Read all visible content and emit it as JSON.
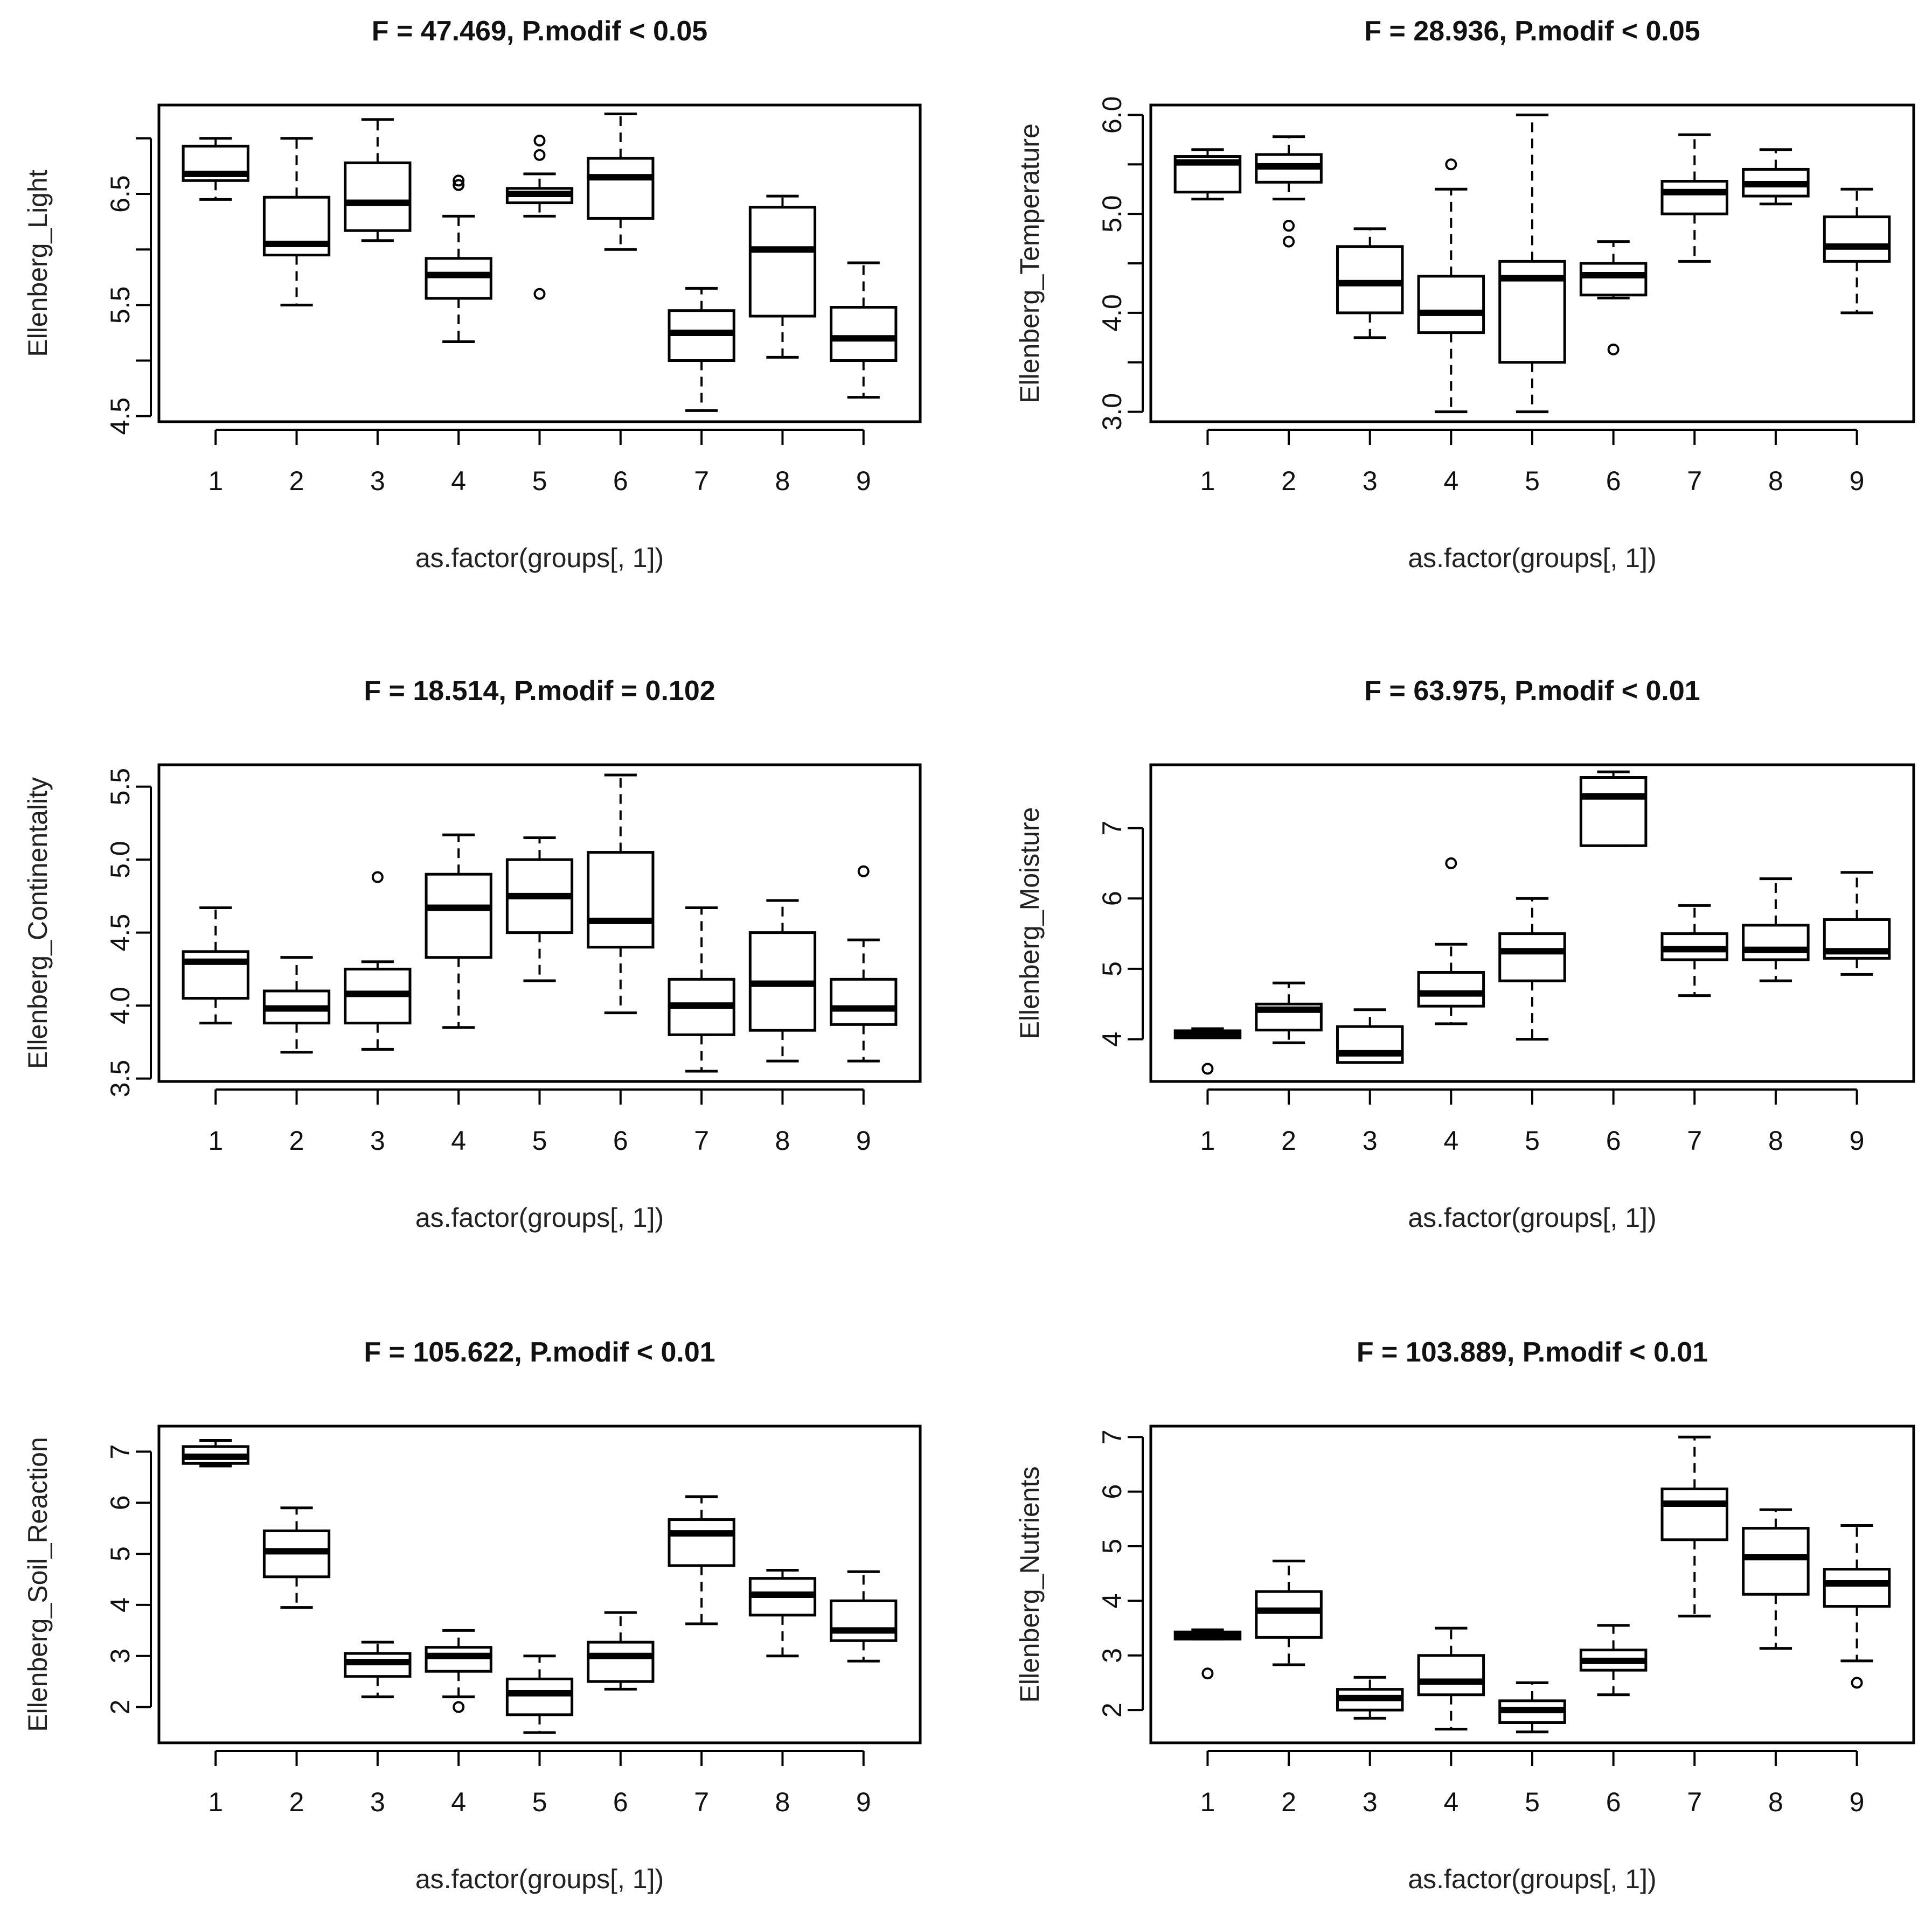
{
  "chart_data": [
    {
      "type": "boxplot",
      "title": "F = 47.469, P.modif < 0.05",
      "xlabel": "as.factor(groups[, 1])",
      "ylabel": "Ellenberg_Light",
      "categories": [
        "1",
        "2",
        "3",
        "4",
        "5",
        "6",
        "7",
        "8",
        "9"
      ],
      "ylim": [
        4.45,
        7.3
      ],
      "yticks": [
        4.5,
        5.0,
        5.5,
        6.0,
        6.5,
        7.0
      ],
      "ytick_labels": [
        "4.5",
        "",
        "5.5",
        "",
        "6.5",
        ""
      ],
      "boxes": [
        {
          "min": 6.45,
          "q1": 6.62,
          "median": 6.68,
          "q3": 6.93,
          "max": 7.0,
          "outliers": []
        },
        {
          "min": 5.5,
          "q1": 5.95,
          "median": 6.05,
          "q3": 6.47,
          "max": 7.0,
          "outliers": []
        },
        {
          "min": 6.08,
          "q1": 6.17,
          "median": 6.42,
          "q3": 6.78,
          "max": 7.17,
          "outliers": []
        },
        {
          "min": 5.17,
          "q1": 5.56,
          "median": 5.77,
          "q3": 5.92,
          "max": 6.3,
          "outliers": [
            6.58,
            6.62
          ]
        },
        {
          "min": 6.3,
          "q1": 6.42,
          "median": 6.5,
          "q3": 6.55,
          "max": 6.68,
          "outliers": [
            5.6,
            6.85,
            6.98
          ]
        },
        {
          "min": 6.0,
          "q1": 6.28,
          "median": 6.65,
          "q3": 6.82,
          "max": 7.22,
          "outliers": []
        },
        {
          "min": 4.55,
          "q1": 5.0,
          "median": 5.25,
          "q3": 5.45,
          "max": 5.65,
          "outliers": []
        },
        {
          "min": 5.03,
          "q1": 5.4,
          "median": 6.0,
          "q3": 6.38,
          "max": 6.48,
          "outliers": []
        },
        {
          "min": 4.67,
          "q1": 5.0,
          "median": 5.2,
          "q3": 5.48,
          "max": 5.88,
          "outliers": []
        }
      ]
    },
    {
      "type": "boxplot",
      "title": "F = 28.936, P.modif < 0.05",
      "xlabel": "as.factor(groups[, 1])",
      "ylabel": "Ellenberg_Temperature",
      "categories": [
        "1",
        "2",
        "3",
        "4",
        "5",
        "6",
        "7",
        "8",
        "9"
      ],
      "ylim": [
        2.9,
        6.1
      ],
      "yticks": [
        3.0,
        3.5,
        4.0,
        4.5,
        5.0,
        5.5,
        6.0
      ],
      "ytick_labels": [
        "3.0",
        "",
        "4.0",
        "",
        "5.0",
        "",
        "6.0"
      ],
      "boxes": [
        {
          "min": 5.15,
          "q1": 5.22,
          "median": 5.52,
          "q3": 5.58,
          "max": 5.65,
          "outliers": []
        },
        {
          "min": 5.15,
          "q1": 5.32,
          "median": 5.48,
          "q3": 5.6,
          "max": 5.78,
          "outliers": [
            4.72,
            4.88
          ]
        },
        {
          "min": 3.75,
          "q1": 4.0,
          "median": 4.3,
          "q3": 4.67,
          "max": 4.85,
          "outliers": []
        },
        {
          "min": 3.0,
          "q1": 3.8,
          "median": 4.0,
          "q3": 4.37,
          "max": 5.25,
          "outliers": [
            5.5
          ]
        },
        {
          "min": 3.0,
          "q1": 3.5,
          "median": 4.35,
          "q3": 4.52,
          "max": 6.0,
          "outliers": []
        },
        {
          "min": 4.15,
          "q1": 4.18,
          "median": 4.38,
          "q3": 4.5,
          "max": 4.72,
          "outliers": [
            3.63
          ]
        },
        {
          "min": 4.52,
          "q1": 5.0,
          "median": 5.22,
          "q3": 5.33,
          "max": 5.8,
          "outliers": []
        },
        {
          "min": 5.1,
          "q1": 5.18,
          "median": 5.3,
          "q3": 5.45,
          "max": 5.65,
          "outliers": []
        },
        {
          "min": 4.0,
          "q1": 4.52,
          "median": 4.67,
          "q3": 4.97,
          "max": 5.25,
          "outliers": []
        }
      ]
    },
    {
      "type": "boxplot",
      "title": "F = 18.514, P.modif = 0.102",
      "xlabel": "as.factor(groups[, 1])",
      "ylabel": "Ellenberg_Continentality",
      "categories": [
        "1",
        "2",
        "3",
        "4",
        "5",
        "6",
        "7",
        "8",
        "9"
      ],
      "ylim": [
        3.48,
        5.65
      ],
      "yticks": [
        3.5,
        4.0,
        4.5,
        5.0,
        5.5
      ],
      "ytick_labels": [
        "3.5",
        "4.0",
        "4.5",
        "5.0",
        "5.5"
      ],
      "boxes": [
        {
          "min": 3.88,
          "q1": 4.05,
          "median": 4.3,
          "q3": 4.37,
          "max": 4.67,
          "outliers": []
        },
        {
          "min": 3.68,
          "q1": 3.88,
          "median": 3.98,
          "q3": 4.1,
          "max": 4.33,
          "outliers": []
        },
        {
          "min": 3.7,
          "q1": 3.88,
          "median": 4.08,
          "q3": 4.25,
          "max": 4.3,
          "outliers": [
            4.88
          ]
        },
        {
          "min": 3.85,
          "q1": 4.33,
          "median": 4.67,
          "q3": 4.9,
          "max": 5.17,
          "outliers": []
        },
        {
          "min": 4.17,
          "q1": 4.5,
          "median": 4.75,
          "q3": 5.0,
          "max": 5.15,
          "outliers": []
        },
        {
          "min": 3.95,
          "q1": 4.4,
          "median": 4.58,
          "q3": 5.05,
          "max": 5.58,
          "outliers": []
        },
        {
          "min": 3.55,
          "q1": 3.8,
          "median": 4.0,
          "q3": 4.18,
          "max": 4.67,
          "outliers": []
        },
        {
          "min": 3.62,
          "q1": 3.83,
          "median": 4.15,
          "q3": 4.5,
          "max": 4.72,
          "outliers": []
        },
        {
          "min": 3.62,
          "q1": 3.87,
          "median": 3.98,
          "q3": 4.18,
          "max": 4.45,
          "outliers": [
            4.92
          ]
        }
      ]
    },
    {
      "type": "boxplot",
      "title": "F = 63.975, P.modif < 0.01",
      "xlabel": "as.factor(groups[, 1])",
      "ylabel": "Ellenberg_Moisture",
      "categories": [
        "1",
        "2",
        "3",
        "4",
        "5",
        "6",
        "7",
        "8",
        "9"
      ],
      "ylim": [
        3.4,
        7.9
      ],
      "yticks": [
        4,
        5,
        6,
        7
      ],
      "ytick_labels": [
        "4",
        "5",
        "6",
        "7"
      ],
      "boxes": [
        {
          "min": 4.02,
          "q1": 4.02,
          "median": 4.07,
          "q3": 4.12,
          "max": 4.15,
          "outliers": [
            3.58
          ]
        },
        {
          "min": 3.95,
          "q1": 4.13,
          "median": 4.42,
          "q3": 4.5,
          "max": 4.8,
          "outliers": []
        },
        {
          "min": 3.67,
          "q1": 3.67,
          "median": 3.8,
          "q3": 4.18,
          "max": 4.42,
          "outliers": []
        },
        {
          "min": 4.22,
          "q1": 4.47,
          "median": 4.65,
          "q3": 4.95,
          "max": 5.35,
          "outliers": [
            6.5
          ]
        },
        {
          "min": 4.0,
          "q1": 4.83,
          "median": 5.25,
          "q3": 5.5,
          "max": 6.0,
          "outliers": []
        },
        {
          "min": 6.75,
          "q1": 6.75,
          "median": 7.45,
          "q3": 7.72,
          "max": 7.8,
          "outliers": []
        },
        {
          "min": 4.62,
          "q1": 5.13,
          "median": 5.28,
          "q3": 5.5,
          "max": 5.9,
          "outliers": []
        },
        {
          "min": 4.83,
          "q1": 5.13,
          "median": 5.27,
          "q3": 5.62,
          "max": 6.28,
          "outliers": []
        },
        {
          "min": 4.92,
          "q1": 5.15,
          "median": 5.25,
          "q3": 5.7,
          "max": 6.37,
          "outliers": []
        }
      ]
    },
    {
      "type": "boxplot",
      "title": "F = 105.622, P.modif < 0.01",
      "xlabel": "as.factor(groups[, 1])",
      "ylabel": "Ellenberg_Soil_Reaction",
      "categories": [
        "1",
        "2",
        "3",
        "4",
        "5",
        "6",
        "7",
        "8",
        "9"
      ],
      "ylim": [
        1.3,
        7.5
      ],
      "yticks": [
        2,
        3,
        4,
        5,
        6,
        7
      ],
      "ytick_labels": [
        "2",
        "3",
        "4",
        "5",
        "6",
        "7"
      ],
      "boxes": [
        {
          "min": 6.72,
          "q1": 6.77,
          "median": 6.9,
          "q3": 7.1,
          "max": 7.22,
          "outliers": []
        },
        {
          "min": 3.95,
          "q1": 4.55,
          "median": 5.05,
          "q3": 5.45,
          "max": 5.9,
          "outliers": []
        },
        {
          "min": 2.2,
          "q1": 2.6,
          "median": 2.88,
          "q3": 3.05,
          "max": 3.27,
          "outliers": []
        },
        {
          "min": 2.2,
          "q1": 2.7,
          "median": 3.0,
          "q3": 3.17,
          "max": 3.5,
          "outliers": [
            2.0
          ]
        },
        {
          "min": 1.5,
          "q1": 1.85,
          "median": 2.27,
          "q3": 2.55,
          "max": 3.0,
          "outliers": []
        },
        {
          "min": 2.35,
          "q1": 2.5,
          "median": 3.0,
          "q3": 3.27,
          "max": 3.85,
          "outliers": []
        },
        {
          "min": 3.63,
          "q1": 4.77,
          "median": 5.4,
          "q3": 5.67,
          "max": 6.12,
          "outliers": []
        },
        {
          "min": 3.0,
          "q1": 3.8,
          "median": 4.2,
          "q3": 4.52,
          "max": 4.68,
          "outliers": []
        },
        {
          "min": 2.9,
          "q1": 3.3,
          "median": 3.5,
          "q3": 4.08,
          "max": 4.65,
          "outliers": []
        }
      ]
    },
    {
      "type": "boxplot",
      "title": "F = 103.889, P.modif < 0.01",
      "xlabel": "as.factor(groups[, 1])",
      "ylabel": "Ellenberg_Nutrients",
      "categories": [
        "1",
        "2",
        "3",
        "4",
        "5",
        "6",
        "7",
        "8",
        "9"
      ],
      "ylim": [
        1.4,
        7.2
      ],
      "yticks": [
        2,
        3,
        4,
        5,
        6,
        7
      ],
      "ytick_labels": [
        "2",
        "3",
        "4",
        "5",
        "6",
        "7"
      ],
      "boxes": [
        {
          "min": 3.3,
          "q1": 3.3,
          "median": 3.37,
          "q3": 3.43,
          "max": 3.47,
          "outliers": [
            2.67
          ]
        },
        {
          "min": 2.83,
          "q1": 3.33,
          "median": 3.82,
          "q3": 4.17,
          "max": 4.73,
          "outliers": []
        },
        {
          "min": 1.85,
          "q1": 2.0,
          "median": 2.22,
          "q3": 2.38,
          "max": 2.6,
          "outliers": []
        },
        {
          "min": 1.65,
          "q1": 2.28,
          "median": 2.52,
          "q3": 3.0,
          "max": 3.5,
          "outliers": []
        },
        {
          "min": 1.6,
          "q1": 1.77,
          "median": 2.0,
          "q3": 2.17,
          "max": 2.5,
          "outliers": []
        },
        {
          "min": 2.28,
          "q1": 2.73,
          "median": 2.9,
          "q3": 3.1,
          "max": 3.55,
          "outliers": []
        },
        {
          "min": 3.72,
          "q1": 5.12,
          "median": 5.78,
          "q3": 6.05,
          "max": 7.0,
          "outliers": []
        },
        {
          "min": 3.13,
          "q1": 4.12,
          "median": 4.8,
          "q3": 5.33,
          "max": 5.67,
          "outliers": []
        },
        {
          "min": 2.9,
          "q1": 3.9,
          "median": 4.32,
          "q3": 4.58,
          "max": 5.38,
          "outliers": [
            2.5
          ]
        }
      ]
    }
  ]
}
